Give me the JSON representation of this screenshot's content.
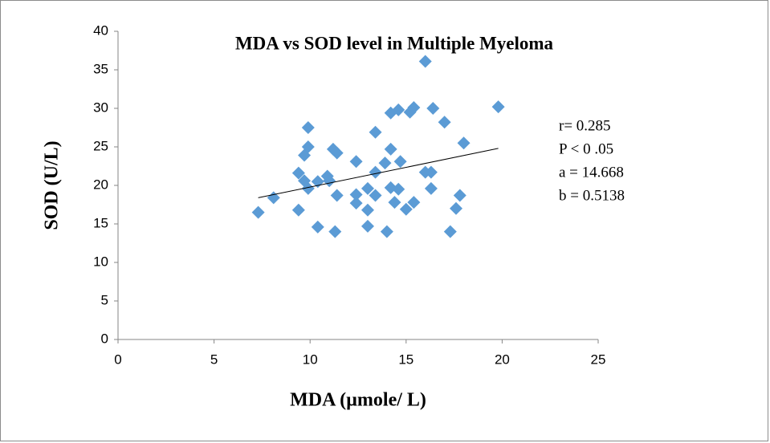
{
  "chart_data": {
    "type": "scatter",
    "title": "MDA vs SOD level in Multiple Myeloma",
    "x_label": "MDA (µmole/ L)",
    "y_label": "SOD (U/L)",
    "annotations": [
      "r= 0.285",
      "P < 0 .05",
      "a = 14.668",
      "b = 0.5138"
    ],
    "xlim": [
      0,
      25
    ],
    "xticks": [
      0,
      5,
      10,
      15,
      20,
      25
    ],
    "ylim": [
      0,
      40
    ],
    "yticks": [
      0,
      5,
      10,
      15,
      20,
      25,
      30,
      35,
      40
    ],
    "color": "#5b9bd5",
    "x": [
      7.3,
      8.1,
      9.4,
      9.4,
      9.7,
      9.7,
      9.9,
      9.9,
      9.9,
      10.4,
      10.4,
      10.9,
      11.0,
      11.2,
      11.4,
      11.3,
      11.4,
      12.4,
      12.4,
      12.4,
      13.0,
      13.0,
      13.0,
      13.4,
      13.4,
      13.4,
      13.9,
      14.0,
      14.2,
      14.2,
      14.2,
      14.4,
      14.6,
      14.7,
      14.6,
      15.0,
      15.2,
      15.4,
      15.4,
      16.0,
      16.0,
      16.3,
      16.4,
      16.3,
      17.0,
      17.3,
      17.6,
      17.8,
      18.0,
      19.8
    ],
    "y": [
      16.5,
      18.4,
      16.8,
      21.6,
      23.9,
      20.6,
      27.5,
      25.0,
      19.6,
      14.6,
      20.5,
      21.2,
      20.6,
      24.7,
      24.2,
      14.0,
      18.7,
      17.7,
      18.8,
      23.1,
      19.6,
      16.8,
      14.7,
      21.7,
      26.9,
      18.7,
      22.9,
      14.0,
      29.4,
      24.7,
      19.7,
      17.8,
      29.8,
      23.1,
      19.5,
      16.9,
      29.5,
      30.1,
      17.8,
      36.1,
      21.7,
      21.7,
      30.0,
      19.6,
      28.2,
      14.0,
      17.0,
      18.7,
      25.5,
      30.2
    ],
    "trendline": {
      "x": [
        7.3,
        19.8
      ],
      "y": [
        18.4,
        24.8
      ]
    }
  }
}
